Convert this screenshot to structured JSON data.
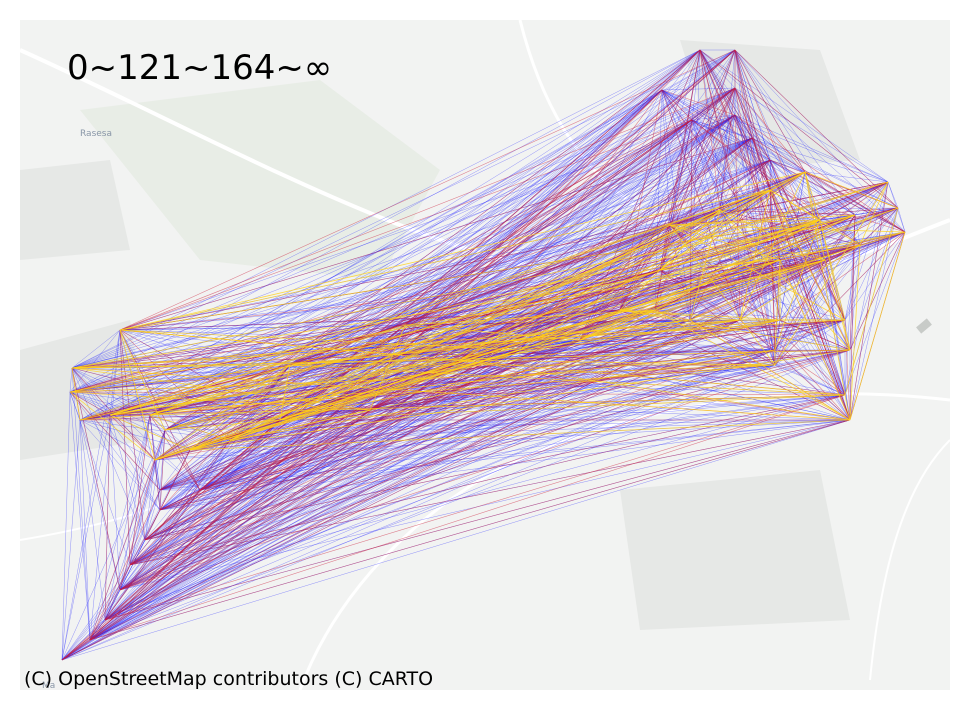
{
  "title": "0~121~164~∞",
  "attribution": "(C) OpenStreetMap contributors (C) CARTO",
  "basemap": {
    "place_labels": [
      "Rasesa",
      "Ma"
    ],
    "land_color": "#f2f3f2",
    "road_color": "#ffffff",
    "urban_color": "#e4e6e4",
    "green_color": "#e6ece4"
  },
  "legend_bins": [
    {
      "range": "0~121",
      "color": "#1a1aff"
    },
    {
      "range": "121~164",
      "color": "#cc1f3a"
    },
    {
      "range": "164~∞",
      "color": "#ffd21a"
    }
  ]
}
